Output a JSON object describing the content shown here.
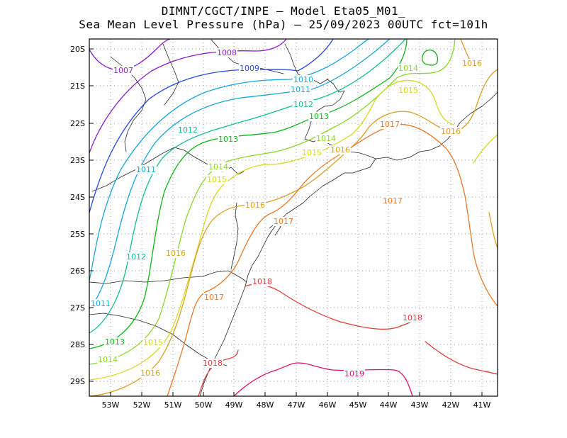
{
  "title_line1": "DIMNT/CGCT/INPE —  Model Eta05_M01_",
  "title_line2": "Sea Mean Level Pressure (hPa) — 25/09/2023 00UTC fct=101h",
  "lat_labels": [
    "20S",
    "21S",
    "22S",
    "23S",
    "24S",
    "25S",
    "26S",
    "27S",
    "28S",
    "29S"
  ],
  "lon_labels": [
    "53W",
    "52W",
    "51W",
    "50W",
    "49W",
    "48W",
    "47W",
    "46W",
    "45W",
    "44W",
    "43W",
    "42W",
    "41W"
  ],
  "contour_labels": [
    {
      "text": "1007",
      "color": "#8c1ccc"
    },
    {
      "text": "1008",
      "color": "#8c1ccc"
    },
    {
      "text": "1009",
      "color": "#2848e0"
    },
    {
      "text": "1010",
      "color": "#14a8d8"
    },
    {
      "text": "1011",
      "color": "#14a8d8"
    },
    {
      "text": "1011",
      "color": "#14a8d8"
    },
    {
      "text": "1011",
      "color": "#14a8d8"
    },
    {
      "text": "1012",
      "color": "#10c08c"
    },
    {
      "text": "1012",
      "color": "#10c08c"
    },
    {
      "text": "1012",
      "color": "#10c08c"
    },
    {
      "text": "1013",
      "color": "#10b418"
    },
    {
      "text": "1013",
      "color": "#10b418"
    },
    {
      "text": "1013",
      "color": "#10b418"
    },
    {
      "text": "1014",
      "color": "#88d828"
    },
    {
      "text": "1014",
      "color": "#88d828"
    },
    {
      "text": "1014",
      "color": "#88d828"
    },
    {
      "text": "1014",
      "color": "#88d828"
    },
    {
      "text": "1015",
      "color": "#d8d820"
    },
    {
      "text": "1015",
      "color": "#d8d820"
    },
    {
      "text": "1015",
      "color": "#d8d820"
    },
    {
      "text": "1015",
      "color": "#d8d820"
    },
    {
      "text": "1016",
      "color": "#d8a020"
    },
    {
      "text": "1016",
      "color": "#d8a020"
    },
    {
      "text": "1016",
      "color": "#d8a020"
    },
    {
      "text": "1016",
      "color": "#d8a020"
    },
    {
      "text": "1016",
      "color": "#d8a020"
    },
    {
      "text": "1016",
      "color": "#d8a020"
    },
    {
      "text": "1017",
      "color": "#e87828"
    },
    {
      "text": "1017",
      "color": "#e87828"
    },
    {
      "text": "1017",
      "color": "#e87828"
    },
    {
      "text": "1017",
      "color": "#e87828"
    },
    {
      "text": "1018",
      "color": "#e03c3c"
    },
    {
      "text": "1018",
      "color": "#e03c3c"
    },
    {
      "text": "1018",
      "color": "#e03c3c"
    },
    {
      "text": "1019",
      "color": "#e0106c"
    }
  ]
}
